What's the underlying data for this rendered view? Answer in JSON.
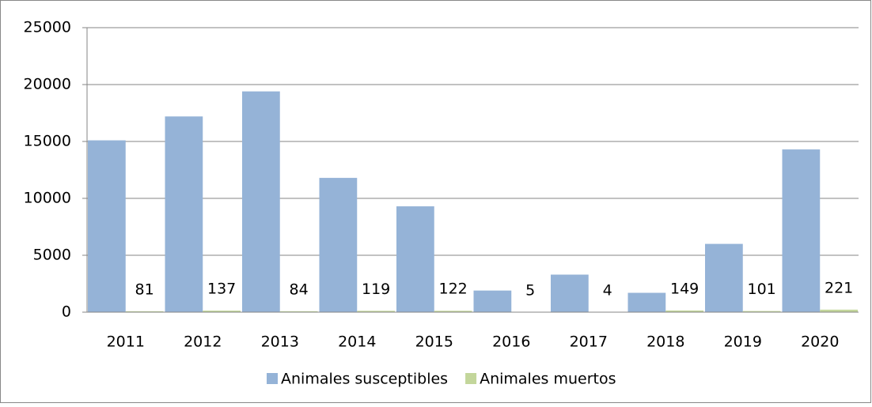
{
  "chart_data": {
    "type": "bar",
    "categories": [
      "2011",
      "2012",
      "2013",
      "2014",
      "2015",
      "2016",
      "2017",
      "2018",
      "2019",
      "2020"
    ],
    "series": [
      {
        "name": "Animales susceptibles",
        "color": "#95b3d7",
        "values": [
          15100,
          17200,
          19400,
          11800,
          9300,
          1900,
          3300,
          1700,
          6000,
          14300
        ]
      },
      {
        "name": "Animales muertos",
        "color": "#c3d69b",
        "values": [
          81,
          137,
          84,
          119,
          122,
          5,
          4,
          149,
          101,
          221
        ],
        "data_labels": true
      }
    ],
    "ylim": [
      0,
      25000
    ],
    "yticks": [
      0,
      5000,
      10000,
      15000,
      20000,
      25000
    ],
    "grid": true,
    "legend": "bottom"
  }
}
